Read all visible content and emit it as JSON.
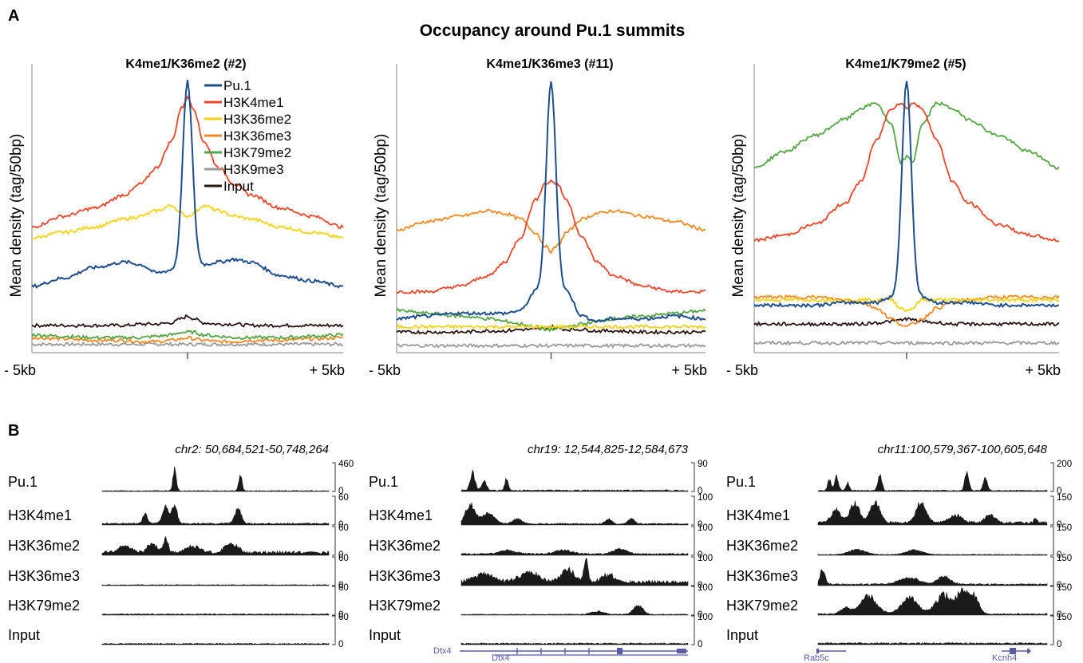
{
  "colors": {
    "Pu.1": "#1f4e8c",
    "H3K4me1": "#e8472a",
    "H3K36me2": "#f5d318",
    "H3K36me3": "#ef8a25",
    "H3K79me2": "#55a544",
    "H3K9me3": "#9a9a9a",
    "Input": "#2a1414",
    "track": "#1a1a1a",
    "gene": "#5a5aa8"
  },
  "panel_a": {
    "letter": "A",
    "title": "Occupancy around Pu.1 summits",
    "ylabel": "Mean density (tag/50bp)",
    "x_left": "- 5kb",
    "x_right": "+ 5kb",
    "legend": [
      "Pu.1",
      "H3K4me1",
      "H3K36me2",
      "H3K36me3",
      "H3K79me2",
      "H3K9me3",
      "Input"
    ]
  },
  "panel_b": {
    "letter": "B"
  },
  "chart_data": [
    {
      "type": "line",
      "title": "K4me1/K36me2 (#2)",
      "xlabel": "",
      "ylabel": "Mean density (tag/50bp)",
      "x_ticks": [
        "- 5kb",
        "+ 5kb"
      ],
      "x": [
        -5,
        -4,
        -3,
        -2,
        -1.5,
        -1,
        -0.5,
        -0.2,
        0,
        0.2,
        0.5,
        1,
        1.5,
        2,
        3,
        4,
        5
      ],
      "series": [
        {
          "name": "Pu.1",
          "values": [
            0.24,
            0.27,
            0.31,
            0.33,
            0.32,
            0.29,
            0.3,
            0.6,
            1.0,
            0.6,
            0.32,
            0.33,
            0.34,
            0.33,
            0.28,
            0.26,
            0.24
          ]
        },
        {
          "name": "H3K4me1",
          "values": [
            0.46,
            0.5,
            0.53,
            0.58,
            0.62,
            0.68,
            0.78,
            0.9,
            0.94,
            0.9,
            0.78,
            0.68,
            0.62,
            0.58,
            0.53,
            0.5,
            0.46
          ]
        },
        {
          "name": "H3K36me2",
          "values": [
            0.42,
            0.44,
            0.46,
            0.49,
            0.5,
            0.52,
            0.54,
            0.51,
            0.5,
            0.51,
            0.54,
            0.52,
            0.5,
            0.49,
            0.46,
            0.44,
            0.42
          ]
        },
        {
          "name": "H3K36me3",
          "values": [
            0.05,
            0.045,
            0.04,
            0.04,
            0.035,
            0.035,
            0.04,
            0.045,
            0.05,
            0.045,
            0.04,
            0.035,
            0.035,
            0.04,
            0.04,
            0.045,
            0.05
          ]
        },
        {
          "name": "H3K79me2",
          "values": [
            0.06,
            0.055,
            0.05,
            0.05,
            0.05,
            0.055,
            0.06,
            0.07,
            0.07,
            0.07,
            0.06,
            0.055,
            0.05,
            0.05,
            0.05,
            0.055,
            0.06
          ]
        },
        {
          "name": "H3K9me3",
          "values": [
            0.025,
            0.025,
            0.025,
            0.025,
            0.025,
            0.025,
            0.025,
            0.025,
            0.025,
            0.025,
            0.025,
            0.025,
            0.025,
            0.025,
            0.025,
            0.025,
            0.025
          ]
        },
        {
          "name": "Input",
          "values": [
            0.095,
            0.095,
            0.095,
            0.095,
            0.1,
            0.1,
            0.105,
            0.12,
            0.13,
            0.12,
            0.105,
            0.1,
            0.1,
            0.095,
            0.095,
            0.095,
            0.095
          ]
        }
      ]
    },
    {
      "type": "line",
      "title": "K4me1/K36me3 (#11)",
      "xlabel": "",
      "ylabel": "Mean density (tag/50bp)",
      "x_ticks": [
        "- 5kb",
        "+ 5kb"
      ],
      "x": [
        -5,
        -4,
        -3,
        -2,
        -1.5,
        -1,
        -0.5,
        -0.2,
        0,
        0.2,
        0.5,
        1,
        1.5,
        2,
        3,
        4,
        5
      ],
      "series": [
        {
          "name": "Pu.1",
          "values": [
            0.12,
            0.13,
            0.14,
            0.14,
            0.14,
            0.15,
            0.22,
            0.6,
            1.0,
            0.6,
            0.22,
            0.13,
            0.11,
            0.12,
            0.12,
            0.13,
            0.12
          ]
        },
        {
          "name": "H3K4me1",
          "values": [
            0.22,
            0.22,
            0.24,
            0.28,
            0.33,
            0.42,
            0.56,
            0.62,
            0.63,
            0.62,
            0.56,
            0.42,
            0.33,
            0.28,
            0.24,
            0.22,
            0.22
          ]
        },
        {
          "name": "H3K36me2",
          "values": [
            0.09,
            0.09,
            0.09,
            0.09,
            0.09,
            0.09,
            0.09,
            0.09,
            0.09,
            0.09,
            0.09,
            0.09,
            0.09,
            0.09,
            0.09,
            0.09,
            0.09
          ]
        },
        {
          "name": "H3K36me3",
          "values": [
            0.45,
            0.48,
            0.5,
            0.52,
            0.51,
            0.49,
            0.44,
            0.39,
            0.37,
            0.39,
            0.44,
            0.49,
            0.51,
            0.52,
            0.5,
            0.48,
            0.45
          ]
        },
        {
          "name": "H3K79me2",
          "values": [
            0.15,
            0.14,
            0.13,
            0.12,
            0.11,
            0.1,
            0.09,
            0.08,
            0.08,
            0.08,
            0.09,
            0.1,
            0.11,
            0.12,
            0.13,
            0.14,
            0.15
          ]
        },
        {
          "name": "H3K9me3",
          "values": [
            0.02,
            0.02,
            0.02,
            0.02,
            0.02,
            0.02,
            0.02,
            0.02,
            0.02,
            0.02,
            0.02,
            0.02,
            0.02,
            0.02,
            0.02,
            0.02,
            0.02
          ]
        },
        {
          "name": "Input",
          "values": [
            0.07,
            0.07,
            0.07,
            0.075,
            0.075,
            0.08,
            0.08,
            0.085,
            0.09,
            0.085,
            0.08,
            0.08,
            0.075,
            0.075,
            0.07,
            0.07,
            0.07
          ]
        }
      ]
    },
    {
      "type": "line",
      "title": "K4me1/K79me2 (#5)",
      "xlabel": "",
      "ylabel": "Mean density (tag/50bp)",
      "x_ticks": [
        "- 5kb",
        "+ 5kb"
      ],
      "x": [
        -5,
        -4,
        -3,
        -2,
        -1.5,
        -1,
        -0.5,
        -0.2,
        0,
        0.2,
        0.5,
        1,
        1.5,
        2,
        3,
        4,
        5
      ],
      "series": [
        {
          "name": "Pu.1",
          "values": [
            0.17,
            0.17,
            0.17,
            0.18,
            0.18,
            0.18,
            0.2,
            0.6,
            1.0,
            0.6,
            0.2,
            0.18,
            0.18,
            0.18,
            0.17,
            0.17,
            0.17
          ]
        },
        {
          "name": "H3K4me1",
          "values": [
            0.41,
            0.43,
            0.47,
            0.55,
            0.63,
            0.78,
            0.9,
            0.92,
            0.9,
            0.92,
            0.9,
            0.78,
            0.63,
            0.55,
            0.47,
            0.43,
            0.41
          ]
        },
        {
          "name": "H3K36me2",
          "values": [
            0.19,
            0.19,
            0.19,
            0.19,
            0.19,
            0.19,
            0.19,
            0.16,
            0.15,
            0.16,
            0.19,
            0.19,
            0.19,
            0.19,
            0.19,
            0.19,
            0.19
          ]
        },
        {
          "name": "H3K36me3",
          "values": [
            0.2,
            0.2,
            0.2,
            0.19,
            0.18,
            0.16,
            0.12,
            0.1,
            0.09,
            0.1,
            0.12,
            0.16,
            0.18,
            0.19,
            0.2,
            0.2,
            0.2
          ]
        },
        {
          "name": "H3K79me2",
          "values": [
            0.68,
            0.74,
            0.8,
            0.86,
            0.9,
            0.92,
            0.84,
            0.7,
            0.72,
            0.7,
            0.84,
            0.92,
            0.9,
            0.86,
            0.8,
            0.74,
            0.68
          ]
        },
        {
          "name": "H3K9me3",
          "values": [
            0.03,
            0.03,
            0.03,
            0.03,
            0.03,
            0.03,
            0.03,
            0.03,
            0.03,
            0.03,
            0.03,
            0.03,
            0.03,
            0.03,
            0.03,
            0.03,
            0.03
          ]
        },
        {
          "name": "Input",
          "values": [
            0.1,
            0.1,
            0.1,
            0.1,
            0.1,
            0.105,
            0.11,
            0.115,
            0.12,
            0.115,
            0.11,
            0.105,
            0.1,
            0.1,
            0.1,
            0.1,
            0.1
          ]
        }
      ]
    },
    {
      "type": "area",
      "title": "chr2: 50,684,521-50,748,264",
      "tracks": [
        {
          "name": "Pu.1",
          "max": "460",
          "min": "0",
          "peaks": [
            [
              0.32,
              0.9,
              0.01
            ],
            [
              0.61,
              0.6,
              0.01
            ]
          ],
          "base": 0.03
        },
        {
          "name": "H3K4me1",
          "max": "60",
          "min": "0",
          "peaks": [
            [
              0.19,
              0.4,
              0.015
            ],
            [
              0.28,
              0.7,
              0.02
            ],
            [
              0.32,
              0.8,
              0.015
            ],
            [
              0.6,
              0.6,
              0.02
            ]
          ],
          "base": 0.06
        },
        {
          "name": "H3K36me2",
          "max": "60",
          "min": "0",
          "peaks": [
            [
              0.1,
              0.25,
              0.04
            ],
            [
              0.22,
              0.35,
              0.03
            ],
            [
              0.28,
              0.55,
              0.015
            ],
            [
              0.4,
              0.25,
              0.04
            ],
            [
              0.57,
              0.35,
              0.04
            ]
          ],
          "base": 0.12
        },
        {
          "name": "H3K36me3",
          "max": "60",
          "min": "0",
          "peaks": [],
          "base": 0.03
        },
        {
          "name": "H3K79me2",
          "max": "60",
          "min": "0",
          "peaks": [],
          "base": 0.04
        },
        {
          "name": "Input",
          "max": "60",
          "min": "0",
          "peaks": [],
          "base": 0.04
        }
      ],
      "genes": []
    },
    {
      "type": "area",
      "title": "chr19: 12,544,825-12,584,673",
      "tracks": [
        {
          "name": "Pu.1",
          "max": "90",
          "min": "0",
          "peaks": [
            [
              0.05,
              0.7,
              0.015
            ],
            [
              0.1,
              0.35,
              0.015
            ],
            [
              0.2,
              0.5,
              0.01
            ]
          ],
          "base": 0.05
        },
        {
          "name": "H3K4me1",
          "max": "100",
          "min": "0",
          "peaks": [
            [
              0.04,
              0.75,
              0.03
            ],
            [
              0.12,
              0.4,
              0.04
            ],
            [
              0.25,
              0.2,
              0.03
            ],
            [
              0.65,
              0.18,
              0.02
            ],
            [
              0.75,
              0.2,
              0.02
            ]
          ],
          "base": 0.05
        },
        {
          "name": "H3K36me2",
          "max": "100",
          "min": "0",
          "peaks": [
            [
              0.2,
              0.15,
              0.05
            ],
            [
              0.45,
              0.15,
              0.05
            ],
            [
              0.7,
              0.2,
              0.04
            ]
          ],
          "base": 0.06
        },
        {
          "name": "H3K36me3",
          "max": "100",
          "min": "0",
          "peaks": [
            [
              0.1,
              0.35,
              0.06
            ],
            [
              0.3,
              0.4,
              0.06
            ],
            [
              0.47,
              0.5,
              0.04
            ],
            [
              0.55,
              1.0,
              0.012
            ],
            [
              0.65,
              0.3,
              0.04
            ]
          ],
          "base": 0.15
        },
        {
          "name": "H3K79me2",
          "max": "100",
          "min": "0",
          "peaks": [
            [
              0.6,
              0.12,
              0.04
            ],
            [
              0.78,
              0.35,
              0.03
            ]
          ],
          "base": 0.03
        },
        {
          "name": "Input",
          "max": "100",
          "min": "0",
          "peaks": [],
          "base": 0.05
        }
      ],
      "genes": [
        "Dtx4",
        "Dtx4"
      ]
    },
    {
      "type": "area",
      "title": "chr11:100,579,367-100,605,648",
      "tracks": [
        {
          "name": "Pu.1",
          "max": "200",
          "min": "0",
          "peaks": [
            [
              0.05,
              0.45,
              0.01
            ],
            [
              0.08,
              0.55,
              0.012
            ],
            [
              0.13,
              0.3,
              0.01
            ],
            [
              0.27,
              0.65,
              0.012
            ],
            [
              0.65,
              0.8,
              0.012
            ],
            [
              0.73,
              0.5,
              0.012
            ]
          ],
          "base": 0.04
        },
        {
          "name": "H3K4me1",
          "max": "150",
          "min": "0",
          "peaks": [
            [
              0.08,
              0.5,
              0.03
            ],
            [
              0.16,
              0.75,
              0.03
            ],
            [
              0.25,
              0.8,
              0.03
            ],
            [
              0.45,
              0.8,
              0.03
            ],
            [
              0.6,
              0.3,
              0.04
            ],
            [
              0.75,
              0.3,
              0.03
            ],
            [
              0.95,
              0.2,
              0.01
            ]
          ],
          "base": 0.1
        },
        {
          "name": "H3K36me2",
          "max": "150",
          "min": "0",
          "peaks": [
            [
              0.17,
              0.2,
              0.05
            ],
            [
              0.42,
              0.18,
              0.05
            ]
          ],
          "base": 0.03
        },
        {
          "name": "H3K36me3",
          "max": "150",
          "min": "0",
          "peaks": [
            [
              0.02,
              0.6,
              0.015
            ],
            [
              0.4,
              0.25,
              0.06
            ],
            [
              0.55,
              0.3,
              0.04
            ]
          ],
          "base": 0.06
        },
        {
          "name": "H3K79me2",
          "max": "150",
          "min": "0",
          "peaks": [
            [
              0.12,
              0.25,
              0.03
            ],
            [
              0.22,
              0.7,
              0.05
            ],
            [
              0.4,
              0.65,
              0.05
            ],
            [
              0.55,
              0.75,
              0.05
            ],
            [
              0.63,
              0.9,
              0.03
            ],
            [
              0.68,
              0.7,
              0.03
            ]
          ],
          "base": 0.05
        },
        {
          "name": "Input",
          "max": "150",
          "min": "0",
          "peaks": [],
          "base": 0.06
        }
      ],
      "genes": [
        "Rab5c",
        "Kcnh4"
      ]
    }
  ]
}
